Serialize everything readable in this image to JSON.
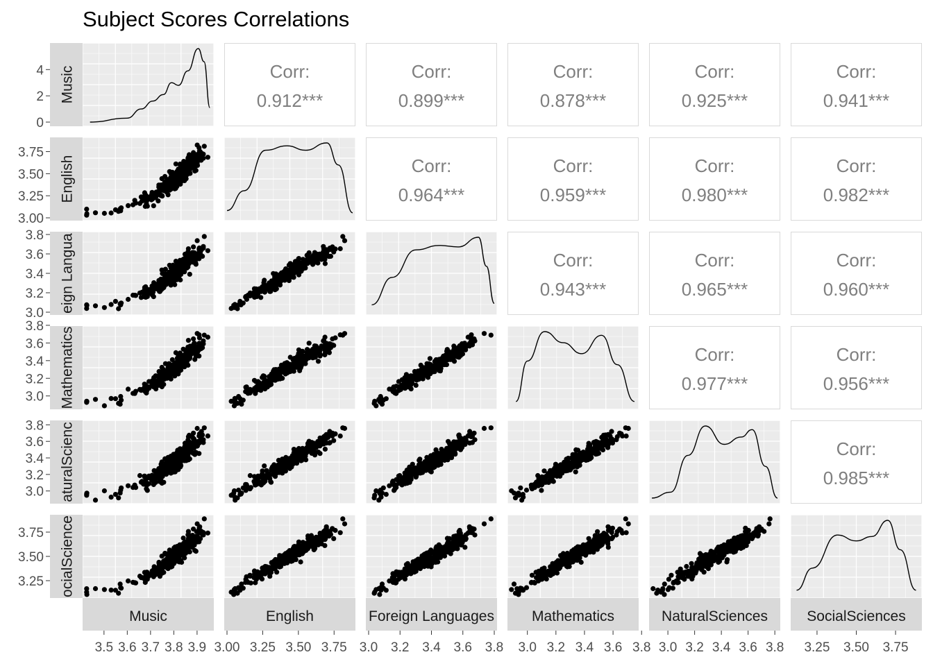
{
  "chart_data": {
    "type": "scatter-matrix",
    "title": "Subject Scores Correlations",
    "variables": [
      "Music",
      "English",
      "Foreign Languages",
      "Mathematics",
      "NaturalSciences",
      "SocialSciences"
    ],
    "strip_labels_row": [
      "Music",
      "English",
      "eign Langua",
      "Mathematics",
      "aturalScienc",
      "ocialScience"
    ],
    "corr_label": "Corr:",
    "correlations": [
      {
        "row": 0,
        "col": 1,
        "value": "0.912***"
      },
      {
        "row": 0,
        "col": 2,
        "value": "0.899***"
      },
      {
        "row": 0,
        "col": 3,
        "value": "0.878***"
      },
      {
        "row": 0,
        "col": 4,
        "value": "0.925***"
      },
      {
        "row": 0,
        "col": 5,
        "value": "0.941***"
      },
      {
        "row": 1,
        "col": 2,
        "value": "0.964***"
      },
      {
        "row": 1,
        "col": 3,
        "value": "0.959***"
      },
      {
        "row": 1,
        "col": 4,
        "value": "0.980***"
      },
      {
        "row": 1,
        "col": 5,
        "value": "0.982***"
      },
      {
        "row": 2,
        "col": 3,
        "value": "0.943***"
      },
      {
        "row": 2,
        "col": 4,
        "value": "0.965***"
      },
      {
        "row": 2,
        "col": 5,
        "value": "0.960***"
      },
      {
        "row": 3,
        "col": 4,
        "value": "0.977***"
      },
      {
        "row": 3,
        "col": 5,
        "value": "0.956***"
      },
      {
        "row": 4,
        "col": 5,
        "value": "0.985***"
      }
    ],
    "ranges": [
      [
        3.42,
        3.96
      ],
      [
        3.0,
        3.88
      ],
      [
        3.0,
        3.8
      ],
      [
        2.88,
        3.76
      ],
      [
        2.88,
        3.82
      ],
      [
        3.1,
        3.9
      ]
    ],
    "x_ticks": [
      [
        "3.5",
        "3.6",
        "3.7",
        "3.8",
        "3.9"
      ],
      [
        "3.00",
        "3.25",
        "3.50",
        "3.75"
      ],
      [
        "3.0",
        "3.2",
        "3.4",
        "3.6",
        "3.8"
      ],
      [
        "3.0",
        "3.2",
        "3.4",
        "3.6",
        "3.8"
      ],
      [
        "3.0",
        "3.2",
        "3.4",
        "3.6",
        "3.8"
      ],
      [
        "3.25",
        "3.50",
        "3.75"
      ]
    ],
    "y_ticks": [
      [
        "0",
        "2",
        "4"
      ],
      [
        "3.00",
        "3.25",
        "3.50",
        "3.75"
      ],
      [
        "3.0",
        "3.2",
        "3.4",
        "3.6",
        "3.8"
      ],
      [
        "3.0",
        "3.2",
        "3.4",
        "3.6",
        "3.8"
      ],
      [
        "3.0",
        "3.2",
        "3.4",
        "3.6",
        "3.8"
      ],
      [
        "3.25",
        "3.50",
        "3.75"
      ]
    ],
    "density_peaks": [
      [
        [
          3.44,
          0.0
        ],
        [
          3.6,
          0.3
        ],
        [
          3.66,
          1.0
        ],
        [
          3.71,
          1.6
        ],
        [
          3.755,
          2.1
        ],
        [
          3.79,
          3.0
        ],
        [
          3.82,
          2.8
        ],
        [
          3.86,
          3.9
        ],
        [
          3.905,
          5.6
        ],
        [
          3.93,
          4.6
        ],
        [
          3.955,
          1.1
        ]
      ],
      [
        [
          3.0,
          0.08
        ],
        [
          3.12,
          0.35
        ],
        [
          3.27,
          0.9
        ],
        [
          3.42,
          0.96
        ],
        [
          3.55,
          0.9
        ],
        [
          3.7,
          1.0
        ],
        [
          3.78,
          0.7
        ],
        [
          3.88,
          0.05
        ]
      ],
      [
        [
          3.02,
          0.08
        ],
        [
          3.15,
          0.45
        ],
        [
          3.3,
          0.82
        ],
        [
          3.45,
          0.88
        ],
        [
          3.57,
          0.86
        ],
        [
          3.7,
          0.99
        ],
        [
          3.75,
          0.6
        ],
        [
          3.8,
          0.1
        ]
      ],
      [
        [
          2.92,
          0.05
        ],
        [
          3.0,
          0.6
        ],
        [
          3.12,
          1.0
        ],
        [
          3.25,
          0.85
        ],
        [
          3.38,
          0.7
        ],
        [
          3.52,
          0.95
        ],
        [
          3.63,
          0.55
        ],
        [
          3.75,
          0.05
        ]
      ],
      [
        [
          2.88,
          0.02
        ],
        [
          3.02,
          0.1
        ],
        [
          3.15,
          0.6
        ],
        [
          3.28,
          1.0
        ],
        [
          3.42,
          0.75
        ],
        [
          3.55,
          0.85
        ],
        [
          3.63,
          0.95
        ],
        [
          3.73,
          0.45
        ],
        [
          3.82,
          0.02
        ]
      ],
      [
        [
          3.12,
          0.05
        ],
        [
          3.22,
          0.35
        ],
        [
          3.38,
          0.8
        ],
        [
          3.5,
          0.72
        ],
        [
          3.6,
          0.78
        ],
        [
          3.7,
          1.0
        ],
        [
          3.78,
          0.6
        ],
        [
          3.88,
          0.05
        ]
      ]
    ],
    "scatter_pattern": "strong positive correlation, ~300 points per panel"
  }
}
